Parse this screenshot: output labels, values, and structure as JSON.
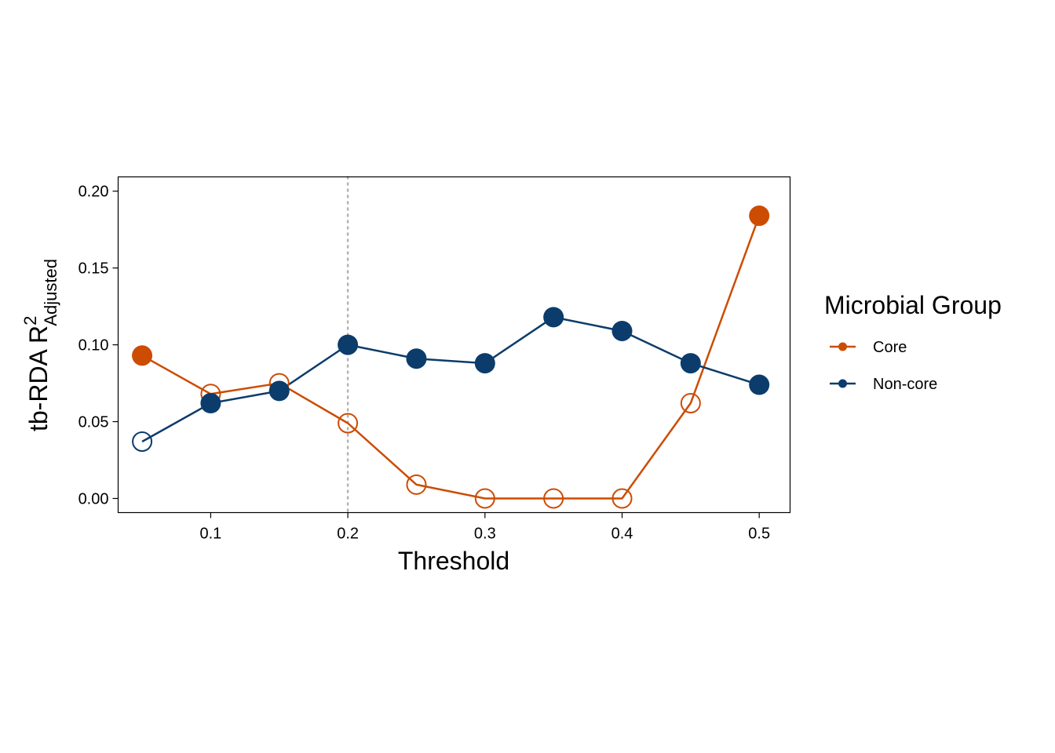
{
  "chart_data": {
    "type": "line",
    "title": "",
    "xlabel": "Threshold",
    "ylabel": {
      "main": "tb-RDA R",
      "superscript": "2",
      "subscript": "Adjusted"
    },
    "x": [
      0.05,
      0.1,
      0.15,
      0.2,
      0.25,
      0.3,
      0.35,
      0.4,
      0.45,
      0.5
    ],
    "xlim": [
      0.0325,
      0.5225
    ],
    "ylim": [
      -0.0092,
      0.2093
    ],
    "x_ticks": [
      0.1,
      0.2,
      0.3,
      0.4,
      0.5
    ],
    "x_tick_labels": [
      "0.1",
      "0.2",
      "0.3",
      "0.4",
      "0.5"
    ],
    "y_ticks": [
      0.0,
      0.05,
      0.1,
      0.15,
      0.2
    ],
    "y_tick_labels": [
      "0.00",
      "0.05",
      "0.10",
      "0.15",
      "0.20"
    ],
    "grid": false,
    "reference_line": {
      "x": 0.2,
      "style": "dotted",
      "color": "#b3b3b3"
    },
    "legend": {
      "title": "Microbial Group",
      "position": "right"
    },
    "series": [
      {
        "name": "Core",
        "color": "#cc4c02",
        "values": [
          0.093,
          0.068,
          0.075,
          0.049,
          0.009,
          0.0,
          0.0,
          0.0,
          0.062,
          0.184
        ],
        "significant": [
          true,
          false,
          false,
          false,
          false,
          false,
          false,
          false,
          false,
          true
        ]
      },
      {
        "name": "Non-core",
        "color": "#0b3c6b",
        "values": [
          0.037,
          0.062,
          0.07,
          0.1,
          0.091,
          0.088,
          0.118,
          0.109,
          0.088,
          0.074
        ],
        "significant": [
          false,
          true,
          true,
          true,
          true,
          true,
          true,
          true,
          true,
          true
        ]
      }
    ]
  }
}
